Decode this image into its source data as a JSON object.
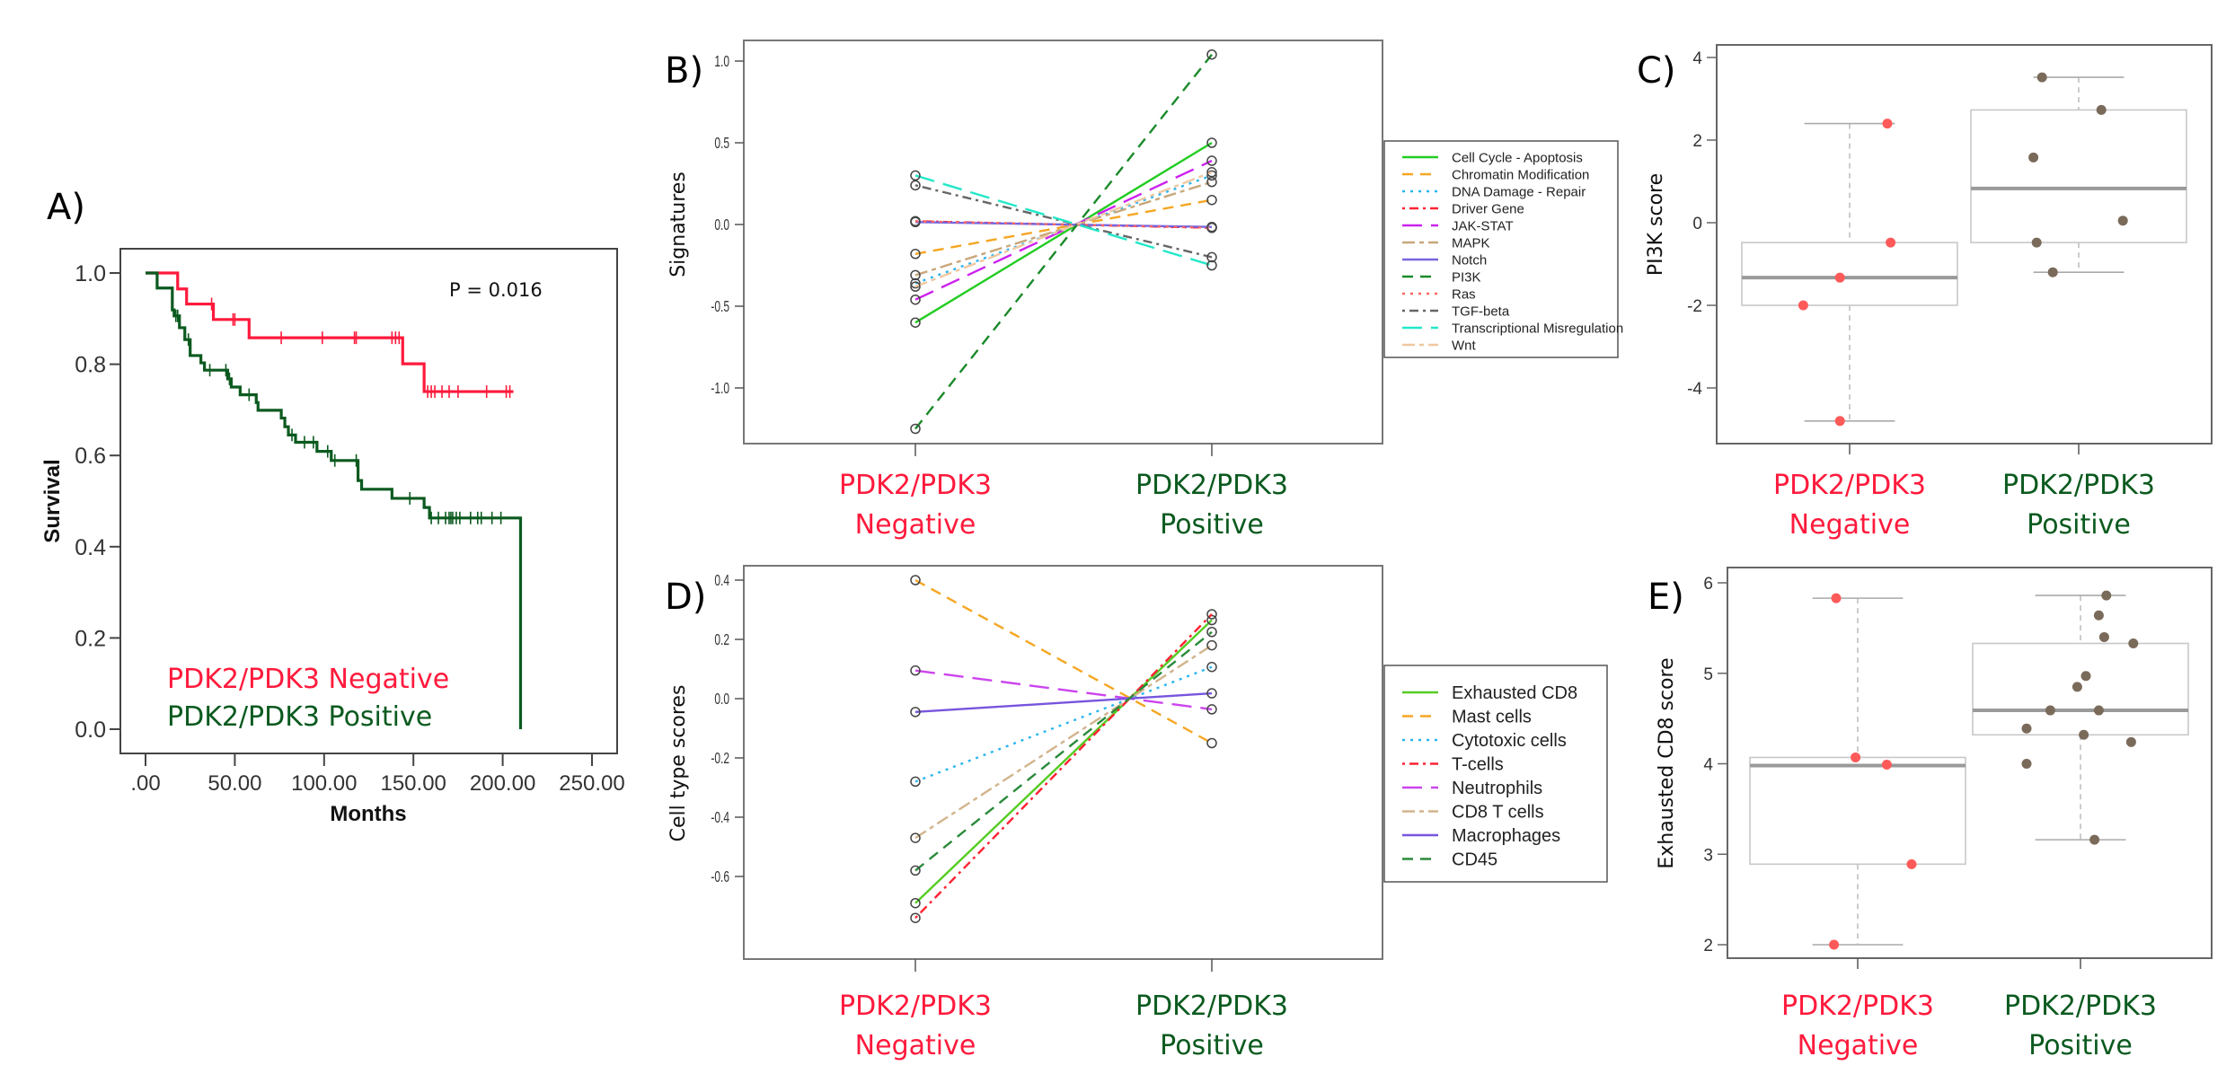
{
  "colors": {
    "negative": "#ff1a3c",
    "positive": "#0b5a1f",
    "neg_point": "#ff5a5a",
    "pos_point": "#7a6a5a"
  },
  "groups": {
    "negative_line1": "PDK2/PDK3",
    "negative_line2": "Negative",
    "positive_line1": "PDK2/PDK3",
    "positive_line2": "Positive"
  },
  "chart_data": [
    {
      "panel": "A)",
      "type": "line",
      "subtype": "kaplan-meier",
      "xlabel": "Months",
      "ylabel": "Survival",
      "xticks": [
        ".00",
        "50.00",
        "100.00",
        "150.00",
        "200.00",
        "250.00"
      ],
      "xtick_values": [
        0,
        50,
        100,
        150,
        200,
        250
      ],
      "yticks": [
        "0.0",
        "0.2",
        "0.4",
        "0.6",
        "0.8",
        "1.0"
      ],
      "ytick_values": [
        0,
        0.2,
        0.4,
        0.6,
        0.8,
        1.0
      ],
      "xlim": [
        -12,
        262
      ],
      "ylim": [
        -0.06,
        1.07
      ],
      "annotation": "P = 0.016",
      "legend": [
        "PDK2/PDK3 Negative",
        "PDK2/PDK3 Positive"
      ],
      "series": [
        {
          "name": "PDK2/PDK3 Negative",
          "color": "#ff1a3c",
          "steps": [
            [
              0,
              1.0
            ],
            [
              18,
              0.965
            ],
            [
              23,
              0.932
            ],
            [
              38,
              0.898
            ],
            [
              58,
              0.858
            ],
            [
              144,
              0.801
            ],
            [
              156,
              0.74
            ]
          ],
          "end": 206,
          "censored": [
            37,
            49,
            50,
            76,
            99,
            117,
            118,
            138,
            140,
            142,
            158,
            160,
            162,
            166,
            170,
            175,
            191,
            202,
            204
          ]
        },
        {
          "name": "PDK2/PDK3 Positive",
          "color": "#0b5a1f",
          "steps": [
            [
              0,
              1.0
            ],
            [
              6.5,
              0.967
            ],
            [
              15,
              0.919
            ],
            [
              16,
              0.906
            ],
            [
              19,
              0.88
            ],
            [
              22,
              0.854
            ],
            [
              25,
              0.819
            ],
            [
              31,
              0.803
            ],
            [
              33,
              0.787
            ],
            [
              46,
              0.768
            ],
            [
              48,
              0.75
            ],
            [
              53,
              0.733
            ],
            [
              62,
              0.716
            ],
            [
              63,
              0.699
            ],
            [
              76,
              0.682
            ],
            [
              78,
              0.663
            ],
            [
              80,
              0.645
            ],
            [
              84,
              0.629
            ],
            [
              96,
              0.609
            ],
            [
              104,
              0.589
            ],
            [
              119,
              0.545
            ],
            [
              121,
              0.526
            ],
            [
              138,
              0.506
            ],
            [
              156,
              0.486
            ],
            [
              159,
              0.463
            ],
            [
              210,
              0.0
            ]
          ],
          "end": 210,
          "censored": [
            17,
            18,
            24,
            36,
            45,
            47,
            58,
            82,
            89,
            94,
            102,
            106,
            118,
            148,
            160,
            164,
            168,
            170,
            171,
            172,
            174,
            176,
            182,
            186,
            188,
            194,
            199
          ]
        }
      ]
    },
    {
      "panel": "B)",
      "type": "line",
      "subtype": "slope",
      "ylabel": "Signatures",
      "categories": [
        "PDK2/PDK3 Negative",
        "PDK2/PDK3 Positive"
      ],
      "yticks": [
        "-1.0",
        "-0.5",
        "0.0",
        "0.5",
        "1.0"
      ],
      "ytick_values": [
        -1.0,
        -0.5,
        0.0,
        0.5,
        1.0
      ],
      "ylim": [
        -1.31,
        1.13
      ],
      "legend_position": "right",
      "series": [
        {
          "name": "Cell Cycle - Apoptosis",
          "color": "#22cc22",
          "dash": "solid",
          "values": [
            -0.6,
            0.5
          ]
        },
        {
          "name": "Chromatin Modification",
          "color": "#f5a623",
          "dash": "dashed",
          "values": [
            -0.18,
            0.15
          ]
        },
        {
          "name": "DNA Damage - Repair",
          "color": "#2bb5f0",
          "dash": "dotted",
          "values": [
            -0.36,
            0.3
          ]
        },
        {
          "name": "Driver Gene",
          "color": "#ff2233",
          "dash": "dotdash",
          "values": [
            0.02,
            -0.02
          ]
        },
        {
          "name": "JAK-STAT",
          "color": "#cc22ee",
          "dash": "longdash",
          "values": [
            -0.46,
            0.39
          ]
        },
        {
          "name": "MAPK",
          "color": "#c8a77a",
          "dash": "twodash",
          "values": [
            -0.31,
            0.26
          ]
        },
        {
          "name": "Notch",
          "color": "#7766dd",
          "dash": "solid",
          "values": [
            0.015,
            -0.015
          ]
        },
        {
          "name": "PI3K",
          "color": "#1a8a2a",
          "dash": "dashed",
          "values": [
            -1.25,
            1.04
          ]
        },
        {
          "name": "Ras",
          "color": "#ff6666",
          "dash": "dotted",
          "values": [
            0.02,
            -0.02
          ]
        },
        {
          "name": "TGF-beta",
          "color": "#666666",
          "dash": "dotdash",
          "values": [
            0.24,
            -0.2
          ]
        },
        {
          "name": "Transcriptional Misregulation",
          "color": "#22e8c8",
          "dash": "longdash",
          "values": [
            0.3,
            -0.25
          ]
        },
        {
          "name": "Wnt",
          "color": "#f0c8a0",
          "dash": "twodash",
          "values": [
            -0.38,
            0.32
          ]
        }
      ]
    },
    {
      "panel": "C)",
      "type": "box",
      "ylabel": "PI3K score",
      "categories": [
        "PDK2/PDK3 Negative",
        "PDK2/PDK3 Positive"
      ],
      "yticks": [
        "-4",
        "-2",
        "0",
        "2",
        "4"
      ],
      "ytick_values": [
        -4,
        -2,
        0,
        2,
        4
      ],
      "ylim": [
        -5.35,
        4.35
      ],
      "boxes": [
        {
          "group": "PDK2/PDK3 Negative",
          "min": -4.8,
          "q1": -2.0,
          "median": -1.33,
          "q3": -0.48,
          "max": 2.4,
          "points": [
            [
              0.35,
              2.4
            ],
            [
              0.38,
              -0.48
            ],
            [
              -0.09,
              -1.33
            ],
            [
              -0.43,
              -2.0
            ],
            [
              -0.09,
              -4.8
            ]
          ]
        },
        {
          "group": "PDK2/PDK3 Positive",
          "min": -1.2,
          "q1": -0.48,
          "median": 0.83,
          "q3": 2.73,
          "max": 3.52,
          "points": [
            [
              -0.34,
              3.52
            ],
            [
              0.21,
              2.73
            ],
            [
              -0.42,
              1.58
            ],
            [
              0.41,
              0.05
            ],
            [
              -0.39,
              -0.48
            ],
            [
              -0.24,
              -1.2
            ]
          ]
        }
      ]
    },
    {
      "panel": "D)",
      "type": "line",
      "subtype": "slope",
      "ylabel": "Cell type scores",
      "categories": [
        "PDK2/PDK3 Negative",
        "PDK2/PDK3 Positive"
      ],
      "yticks": [
        "-0.6",
        "-0.4",
        "-0.2",
        "0.0",
        "0.2",
        "0.4"
      ],
      "ytick_values": [
        -0.6,
        -0.4,
        -0.2,
        0.0,
        0.2,
        0.4
      ],
      "ylim": [
        -0.78,
        0.43
      ],
      "legend_position": "right",
      "series": [
        {
          "name": "Exhausted CD8",
          "color": "#55cc22",
          "dash": "solid",
          "values": [
            -0.69,
            0.265
          ]
        },
        {
          "name": "Mast cells",
          "color": "#f5a623",
          "dash": "dashed",
          "values": [
            0.4,
            -0.15
          ]
        },
        {
          "name": "Cytotoxic cells",
          "color": "#2bb5f0",
          "dash": "dotted",
          "values": [
            -0.28,
            0.107
          ]
        },
        {
          "name": "T-cells",
          "color": "#ff2233",
          "dash": "dotdash",
          "values": [
            -0.74,
            0.285
          ]
        },
        {
          "name": "Neutrophils",
          "color": "#cc44ee",
          "dash": "longdash",
          "values": [
            0.095,
            -0.036
          ]
        },
        {
          "name": "CD8 T cells",
          "color": "#d2b48c",
          "dash": "twodash",
          "values": [
            -0.47,
            0.18
          ]
        },
        {
          "name": "Macrophages",
          "color": "#7755dd",
          "dash": "solid",
          "values": [
            -0.045,
            0.018
          ]
        },
        {
          "name": "CD45",
          "color": "#2a8a3a",
          "dash": "dashed",
          "values": [
            -0.58,
            0.225
          ]
        }
      ]
    },
    {
      "panel": "E)",
      "type": "box",
      "ylabel": "Exhausted CD8 score",
      "categories": [
        "PDK2/PDK3 Negative",
        "PDK2/PDK3 Positive"
      ],
      "yticks": [
        "2",
        "3",
        "4",
        "5",
        "6"
      ],
      "ytick_values": [
        2,
        3,
        4,
        5,
        6
      ],
      "ylim": [
        1.83,
        6.07
      ],
      "boxes": [
        {
          "group": "PDK2/PDK3 Negative",
          "min": 2.0,
          "q1": 2.89,
          "median": 3.98,
          "q3": 4.07,
          "max": 5.83,
          "points": [
            [
              -0.2,
              5.83
            ],
            [
              -0.02,
              4.07
            ],
            [
              0.27,
              3.99
            ],
            [
              0.5,
              2.89
            ],
            [
              -0.22,
              2.0
            ]
          ]
        },
        {
          "group": "PDK2/PDK3 Positive",
          "min": 3.16,
          "q1": 4.32,
          "median": 4.59,
          "q3": 5.33,
          "max": 5.86,
          "points": [
            [
              0.24,
              5.86
            ],
            [
              0.17,
              5.64
            ],
            [
              0.22,
              5.4
            ],
            [
              0.49,
              5.33
            ],
            [
              0.05,
              4.97
            ],
            [
              -0.03,
              4.85
            ],
            [
              -0.28,
              4.59
            ],
            [
              0.17,
              4.59
            ],
            [
              -0.5,
              4.39
            ],
            [
              0.03,
              4.32
            ],
            [
              0.47,
              4.24
            ],
            [
              -0.5,
              4.0
            ],
            [
              0.13,
              3.16
            ]
          ]
        }
      ]
    }
  ]
}
